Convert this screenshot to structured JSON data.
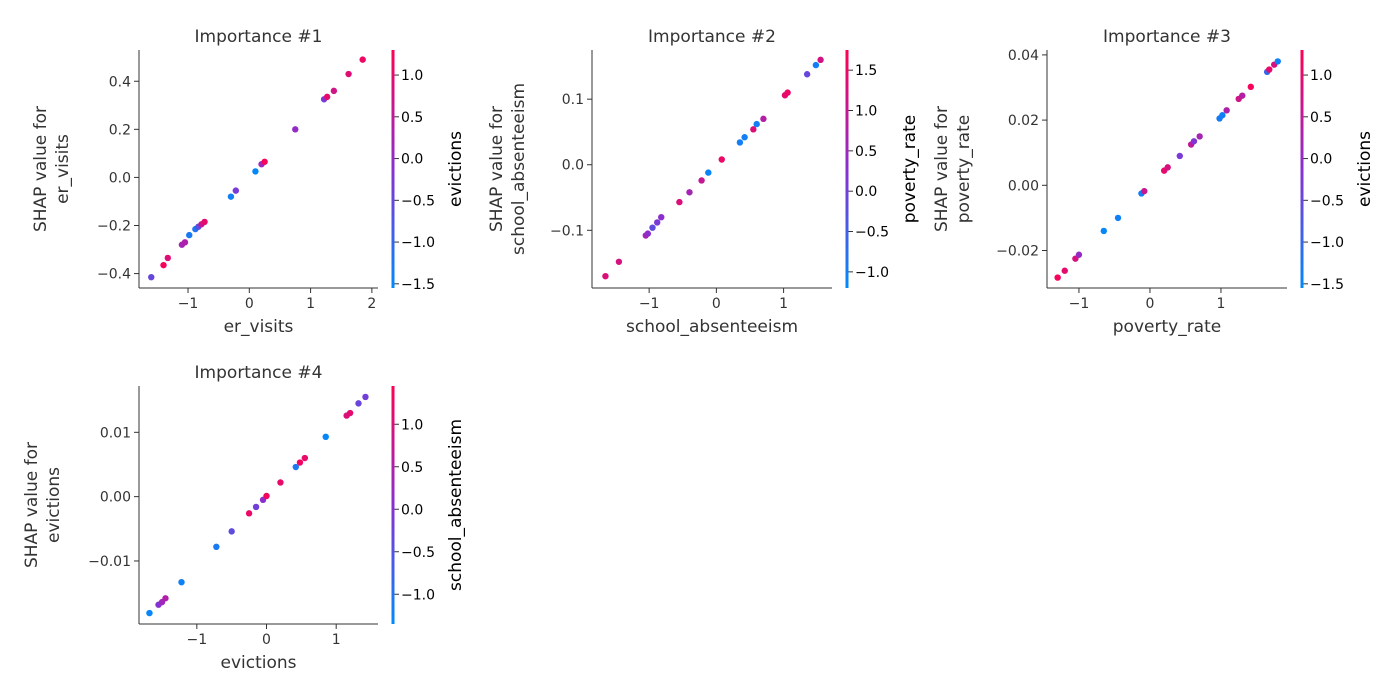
{
  "chart_data": [
    {
      "type": "scatter",
      "title": "Importance #1",
      "xlabel": "er_visits",
      "ylabel": "SHAP value for\ner_visits",
      "xlim": [
        -1.8,
        2.1
      ],
      "ylim": [
        -0.46,
        0.53
      ],
      "xticks": [
        -1,
        0,
        1,
        2
      ],
      "yticks": [
        -0.4,
        -0.2,
        0.0,
        0.2,
        0.4
      ],
      "ytick_labels": [
        "−0.4",
        "−0.2",
        "0.0",
        "0.2",
        "0.4"
      ],
      "xtick_labels": [
        "−1",
        "0",
        "1",
        "2"
      ],
      "colorbar": {
        "label": "evictions",
        "lim": [
          -1.55,
          1.3
        ],
        "ticks": [
          -1.5,
          -1.0,
          -0.5,
          0.0,
          0.5,
          1.0
        ],
        "tick_labels": [
          "−1.5",
          "−1.0",
          "−0.5",
          "0.0",
          "0.5",
          "1.0"
        ]
      },
      "points": [
        {
          "x": -1.6,
          "y": -0.415,
          "c": -0.5
        },
        {
          "x": -1.4,
          "y": -0.365,
          "c": 1.2
        },
        {
          "x": -1.33,
          "y": -0.335,
          "c": 0.9
        },
        {
          "x": -1.1,
          "y": -0.28,
          "c": 0.2
        },
        {
          "x": -1.05,
          "y": -0.27,
          "c": 0.3
        },
        {
          "x": -0.98,
          "y": -0.24,
          "c": -1.3
        },
        {
          "x": -0.88,
          "y": -0.215,
          "c": -1.2
        },
        {
          "x": -0.83,
          "y": -0.205,
          "c": -0.6
        },
        {
          "x": -0.78,
          "y": -0.195,
          "c": 0.6
        },
        {
          "x": -0.73,
          "y": -0.185,
          "c": 1.0
        },
        {
          "x": -0.3,
          "y": -0.08,
          "c": -1.4
        },
        {
          "x": -0.22,
          "y": -0.055,
          "c": -0.3
        },
        {
          "x": 0.1,
          "y": 0.025,
          "c": -1.5
        },
        {
          "x": 0.2,
          "y": 0.055,
          "c": 0.1
        },
        {
          "x": 0.25,
          "y": 0.065,
          "c": 1.2
        },
        {
          "x": 0.75,
          "y": 0.2,
          "c": 0.0
        },
        {
          "x": 1.22,
          "y": 0.325,
          "c": -0.3
        },
        {
          "x": 1.27,
          "y": 0.335,
          "c": 1.0
        },
        {
          "x": 1.38,
          "y": 0.36,
          "c": 0.7
        },
        {
          "x": 1.62,
          "y": 0.43,
          "c": 0.9
        },
        {
          "x": 1.85,
          "y": 0.49,
          "c": 1.1
        }
      ]
    },
    {
      "type": "scatter",
      "title": "Importance #2",
      "xlabel": "school_absenteeism",
      "ylabel": "SHAP value for\nschool_absenteeism",
      "xlim": [
        -1.85,
        1.72
      ],
      "ylim": [
        -0.188,
        0.175
      ],
      "xticks": [
        -1,
        0,
        1
      ],
      "yticks": [
        -0.1,
        0.0,
        0.1
      ],
      "ytick_labels": [
        "−0.1",
        "0.0",
        "0.1"
      ],
      "xtick_labels": [
        "−1",
        "0",
        "1"
      ],
      "colorbar": {
        "label": "poverty_rate",
        "lim": [
          -1.2,
          1.75
        ],
        "ticks": [
          -1.0,
          -0.5,
          0.0,
          0.5,
          1.0,
          1.5
        ],
        "tick_labels": [
          "−1.0",
          "−0.5",
          "0.0",
          "0.5",
          "1.0",
          "1.5"
        ]
      },
      "points": [
        {
          "x": -1.65,
          "y": -0.17,
          "c": 1.3
        },
        {
          "x": -1.45,
          "y": -0.148,
          "c": 1.2
        },
        {
          "x": -1.05,
          "y": -0.108,
          "c": 0.6
        },
        {
          "x": -1.02,
          "y": -0.105,
          "c": 0.3
        },
        {
          "x": -0.95,
          "y": -0.096,
          "c": -0.2
        },
        {
          "x": -0.88,
          "y": -0.088,
          "c": 0.1
        },
        {
          "x": -0.82,
          "y": -0.08,
          "c": 0.3
        },
        {
          "x": -0.55,
          "y": -0.057,
          "c": 1.3
        },
        {
          "x": -0.4,
          "y": -0.042,
          "c": 0.6
        },
        {
          "x": -0.22,
          "y": -0.024,
          "c": 1.0
        },
        {
          "x": -0.12,
          "y": -0.012,
          "c": -1.1
        },
        {
          "x": 0.08,
          "y": 0.008,
          "c": 1.5
        },
        {
          "x": 0.35,
          "y": 0.034,
          "c": -1.0
        },
        {
          "x": 0.42,
          "y": 0.042,
          "c": -1.0
        },
        {
          "x": 0.55,
          "y": 0.054,
          "c": 1.3
        },
        {
          "x": 0.6,
          "y": 0.062,
          "c": -1.0
        },
        {
          "x": 0.7,
          "y": 0.07,
          "c": 0.8
        },
        {
          "x": 1.02,
          "y": 0.106,
          "c": 1.4
        },
        {
          "x": 1.06,
          "y": 0.11,
          "c": 1.5
        },
        {
          "x": 1.35,
          "y": 0.138,
          "c": -0.1
        },
        {
          "x": 1.48,
          "y": 0.152,
          "c": -1.0
        },
        {
          "x": 1.55,
          "y": 0.16,
          "c": 1.2
        }
      ]
    },
    {
      "type": "scatter",
      "title": "Importance #3",
      "xlabel": "poverty_rate",
      "ylabel": "SHAP value for\npoverty_rate",
      "xlim": [
        -1.45,
        1.93
      ],
      "ylim": [
        -0.0315,
        0.0415
      ],
      "xticks": [
        -1,
        0,
        1
      ],
      "yticks": [
        -0.02,
        0.0,
        0.02,
        0.04
      ],
      "ytick_labels": [
        "−0.02",
        "0.00",
        "0.02",
        "0.04"
      ],
      "xtick_labels": [
        "−1",
        "0",
        "1"
      ],
      "colorbar": {
        "label": "evictions",
        "lim": [
          -1.55,
          1.3
        ],
        "ticks": [
          -1.5,
          -1.0,
          -0.5,
          0.0,
          0.5,
          1.0
        ],
        "tick_labels": [
          "−1.5",
          "−1.0",
          "−0.5",
          "0.0",
          "0.5",
          "1.0"
        ]
      },
      "points": [
        {
          "x": -1.3,
          "y": -0.0283,
          "c": 1.2
        },
        {
          "x": -1.2,
          "y": -0.0262,
          "c": 1.0
        },
        {
          "x": -1.05,
          "y": -0.0225,
          "c": 0.8
        },
        {
          "x": -1.0,
          "y": -0.0213,
          "c": 0.0
        },
        {
          "x": -0.65,
          "y": -0.014,
          "c": -1.5
        },
        {
          "x": -0.45,
          "y": -0.01,
          "c": -1.4
        },
        {
          "x": -0.12,
          "y": -0.0025,
          "c": -1.4
        },
        {
          "x": -0.08,
          "y": -0.0018,
          "c": 0.6
        },
        {
          "x": 0.2,
          "y": 0.0045,
          "c": 1.0
        },
        {
          "x": 0.25,
          "y": 0.0055,
          "c": 0.8
        },
        {
          "x": 0.42,
          "y": 0.009,
          "c": -0.3
        },
        {
          "x": 0.58,
          "y": 0.0125,
          "c": 0.5
        },
        {
          "x": 0.62,
          "y": 0.0135,
          "c": -0.2
        },
        {
          "x": 0.7,
          "y": 0.015,
          "c": 0.2
        },
        {
          "x": 0.98,
          "y": 0.0205,
          "c": -1.3
        },
        {
          "x": 1.02,
          "y": 0.0215,
          "c": -1.4
        },
        {
          "x": 1.08,
          "y": 0.023,
          "c": 0.3
        },
        {
          "x": 1.25,
          "y": 0.0265,
          "c": 0.7
        },
        {
          "x": 1.3,
          "y": 0.0275,
          "c": 0.4
        },
        {
          "x": 1.42,
          "y": 0.0302,
          "c": 1.2
        },
        {
          "x": 1.65,
          "y": 0.0348,
          "c": -1.0
        },
        {
          "x": 1.68,
          "y": 0.0355,
          "c": 1.0
        },
        {
          "x": 1.75,
          "y": 0.037,
          "c": 0.8
        },
        {
          "x": 1.8,
          "y": 0.038,
          "c": -1.4
        }
      ]
    },
    {
      "type": "scatter",
      "title": "Importance #4",
      "xlabel": "evictions",
      "ylabel": "SHAP value for\nevictions",
      "xlim": [
        -1.83,
        1.6
      ],
      "ylim": [
        -0.0198,
        0.0172
      ],
      "xticks": [
        -1,
        0,
        1
      ],
      "yticks": [
        -0.01,
        0.0,
        0.01
      ],
      "ytick_labels": [
        "−0.01",
        "0.00",
        "0.01"
      ],
      "xtick_labels": [
        "−1",
        "0",
        "1"
      ],
      "colorbar": {
        "label": "school_absenteeism",
        "lim": [
          -1.35,
          1.45
        ],
        "ticks": [
          -1.0,
          -0.5,
          0.0,
          0.5,
          1.0
        ],
        "tick_labels": [
          "−1.0",
          "−0.5",
          "0.0",
          "0.5",
          "1.0"
        ]
      },
      "points": [
        {
          "x": -1.68,
          "y": -0.0181,
          "c": -1.3
        },
        {
          "x": -1.55,
          "y": -0.0168,
          "c": 0.0
        },
        {
          "x": -1.5,
          "y": -0.0164,
          "c": 0.3
        },
        {
          "x": -1.45,
          "y": -0.0158,
          "c": 0.5
        },
        {
          "x": -1.22,
          "y": -0.0133,
          "c": -1.2
        },
        {
          "x": -0.72,
          "y": -0.0078,
          "c": -1.1
        },
        {
          "x": -0.5,
          "y": -0.0054,
          "c": -0.4
        },
        {
          "x": -0.25,
          "y": -0.0026,
          "c": 1.2
        },
        {
          "x": -0.15,
          "y": -0.0016,
          "c": -0.2
        },
        {
          "x": -0.05,
          "y": -0.0005,
          "c": 0.1
        },
        {
          "x": 0.0,
          "y": 0.0001,
          "c": 1.3
        },
        {
          "x": 0.2,
          "y": 0.0022,
          "c": 1.2
        },
        {
          "x": 0.42,
          "y": 0.0046,
          "c": -1.1
        },
        {
          "x": 0.48,
          "y": 0.0053,
          "c": 1.3
        },
        {
          "x": 0.55,
          "y": 0.006,
          "c": 1.2
        },
        {
          "x": 0.85,
          "y": 0.0093,
          "c": -1.3
        },
        {
          "x": 1.15,
          "y": 0.0126,
          "c": 1.0
        },
        {
          "x": 1.2,
          "y": 0.013,
          "c": 1.1
        },
        {
          "x": 1.32,
          "y": 0.0145,
          "c": -0.3
        },
        {
          "x": 1.42,
          "y": 0.0155,
          "c": -0.2
        }
      ]
    }
  ],
  "colors": {
    "colormap_low": "#008afb",
    "colormap_mid": "#8a2fd0",
    "colormap_high": "#ff0052",
    "axis": "#333333",
    "text": "#333333"
  }
}
